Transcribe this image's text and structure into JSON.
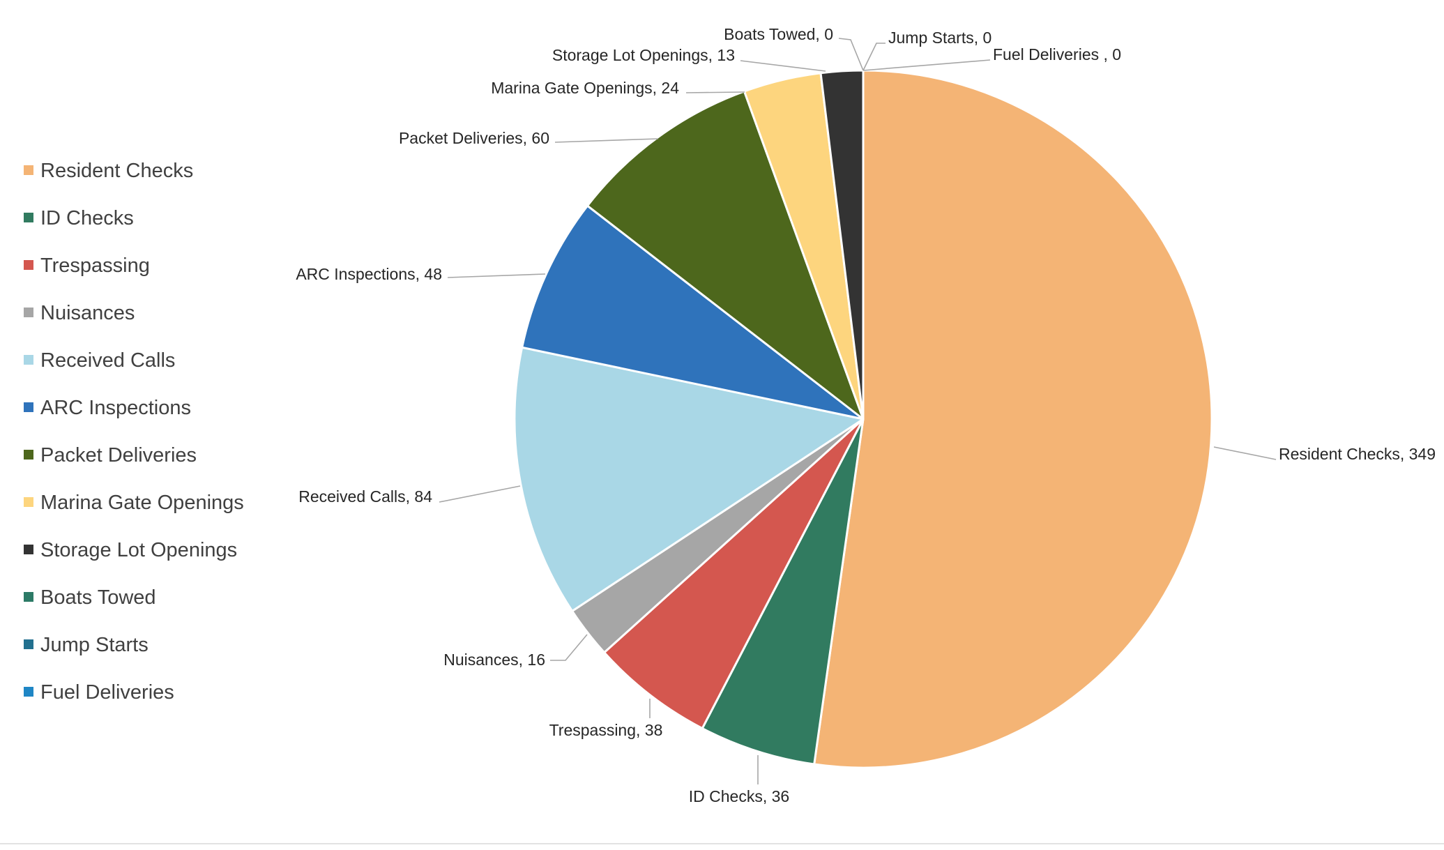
{
  "chart_data": {
    "type": "pie",
    "title": "",
    "legend_position": "left",
    "start_angle_deg": 0,
    "direction": "clockwise",
    "slices": [
      {
        "label": "Resident Checks",
        "value": 349,
        "color": "#F4B475",
        "data_label": "Resident Checks, 349"
      },
      {
        "label": "ID Checks",
        "value": 36,
        "color": "#317B60",
        "data_label": "ID Checks, 36"
      },
      {
        "label": "Trespassing",
        "value": 38,
        "color": "#D4574F",
        "data_label": "Trespassing, 38"
      },
      {
        "label": "Nuisances",
        "value": 16,
        "color": "#A6A6A6",
        "data_label": "Nuisances, 16"
      },
      {
        "label": "Received Calls",
        "value": 84,
        "color": "#A9D7E6",
        "data_label": "Received Calls, 84"
      },
      {
        "label": "ARC Inspections",
        "value": 48,
        "color": "#2F73BB",
        "data_label": "ARC Inspections, 48"
      },
      {
        "label": "Packet Deliveries",
        "value": 60,
        "color": "#4D671C",
        "data_label": "Packet Deliveries, 60"
      },
      {
        "label": "Marina Gate Openings",
        "value": 24,
        "color": "#FDD57E",
        "data_label": "Marina Gate Openings, 24"
      },
      {
        "label": "Storage Lot Openings",
        "value": 13,
        "color": "#333333",
        "data_label": "Storage Lot Openings, 13"
      },
      {
        "label": "Boats Towed",
        "value": 0,
        "color": "#2C7A66",
        "data_label": "Boats Towed, 0"
      },
      {
        "label": "Jump Starts",
        "value": 0,
        "color": "#22708F",
        "data_label": "Jump Starts, 0"
      },
      {
        "label": "Fuel Deliveries",
        "value": 0,
        "color": "#1F86C5",
        "data_label": "Fuel Deliveries , 0"
      }
    ]
  }
}
